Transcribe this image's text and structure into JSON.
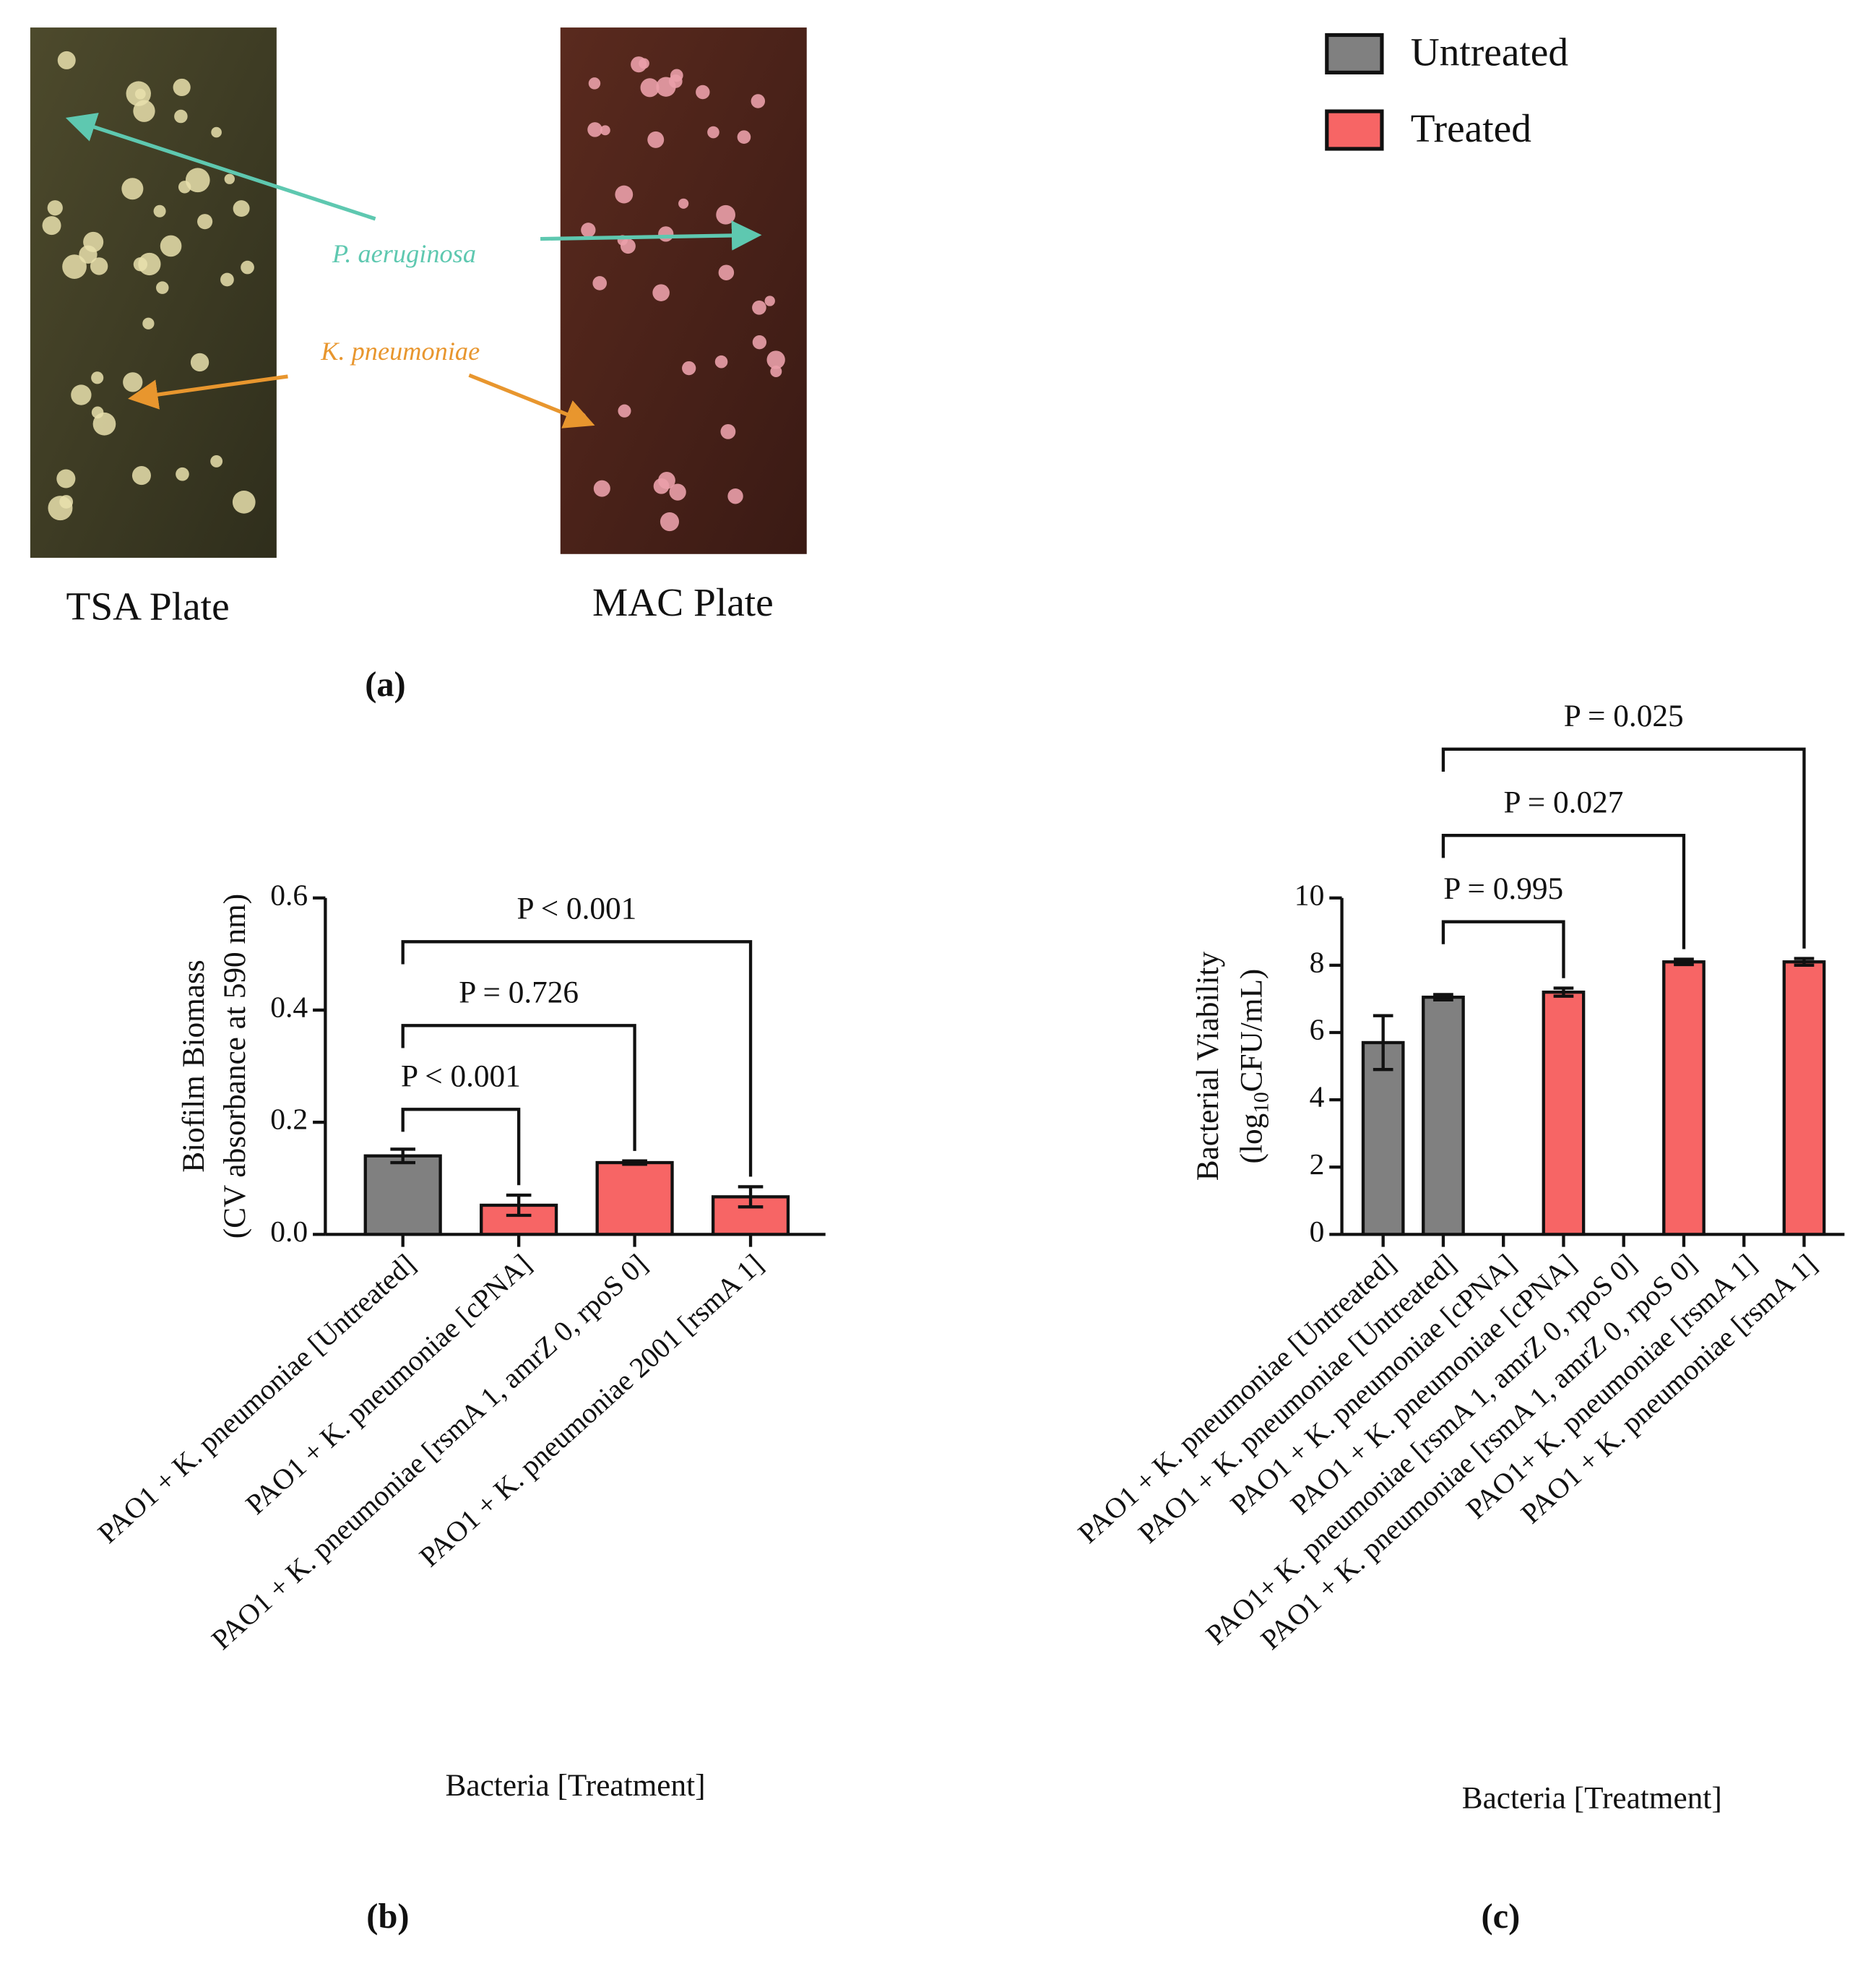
{
  "panel_a": {
    "plates": [
      "TSA Plate",
      "MAC Plate"
    ],
    "species": [
      "P. aeruginosa",
      "K. pneumoniae"
    ],
    "panel_label": "(a)"
  },
  "legend": [
    {
      "name": "Untreated",
      "color": "#808080"
    },
    {
      "name": "Treated",
      "color": "#f76565"
    }
  ],
  "chart_data": [
    {
      "type": "bar",
      "panel_label": "(b)",
      "ylabel": "Biofilm Biomass",
      "ylabel_units": [
        "(CV absorbance at 590 nm)"
      ],
      "xlabel": "Bacteria [Treatment]",
      "categories": [
        "PAO1 + K. pneumoniae [Untreated]",
        "PAO1 + K. pneumoniae [cPNA]",
        "PAO1 + K. pneumoniae [rsmA 1, amrZ 0, rpoS 0]",
        "PAO1 + K. pneumoniae 2001 [rsmA 1]"
      ],
      "values": [
        0.14,
        0.052,
        0.128,
        0.067
      ],
      "errors": [
        0.012,
        0.018,
        0.003,
        0.018
      ],
      "colors": [
        "#808080",
        "#f76565",
        "#f76565",
        "#f76565"
      ],
      "ylim": [
        0,
        0.6
      ],
      "yticks": [
        {
          "value": 0,
          "label": "0.0"
        },
        0.2,
        0.4,
        0.6
      ],
      "comparisons": [
        {
          "label": "P < 0.001",
          "between": [
            0,
            1
          ]
        },
        {
          "label": "P = 0.726",
          "between": [
            0,
            2
          ]
        },
        {
          "label": "P < 0.001",
          "between": [
            0,
            3
          ]
        }
      ]
    },
    {
      "type": "bar",
      "panel_label": "(c)",
      "ylabel": "Bacterial Viability",
      "ylabel_units": [
        "(log",
        "10",
        "CFU/mL)"
      ],
      "xlabel": "Bacteria [Treatment]",
      "categories": [
        "PAO1 + K. pneumoniae [Untreated]",
        "PAO1 + K. pneumoniae [Untreated]",
        "PAO1 + K. pneumoniae [cPNA]",
        "PAO1 + K. pneumoniae [cPNA]",
        "PAO1+ K. pneumoniae [rsmA 1, amrZ 0, rpoS 0]",
        "PAO1 + K. pneumoniae [rsmA 1, amrZ 0, rpoS 0]",
        "PAO1+ K. pneumoniae [rsmA 1]",
        "PAO1 + K. pneumoniae [rsmA 1]"
      ],
      "values": [
        5.7,
        7.05,
        null,
        7.2,
        null,
        8.1,
        null,
        8.1
      ],
      "errors": [
        0.8,
        0.08,
        null,
        0.12,
        null,
        0.08,
        null,
        0.1
      ],
      "colors": [
        "#808080",
        "#808080",
        null,
        "#f76565",
        null,
        "#f76565",
        null,
        "#f76565"
      ],
      "ylim": [
        0,
        10
      ],
      "yticks": [
        0,
        2,
        4,
        6,
        8,
        10
      ],
      "comparisons": [
        {
          "label": "P = 0.995",
          "between": [
            1,
            3
          ]
        },
        {
          "label": "P = 0.027",
          "between": [
            1,
            5
          ]
        },
        {
          "label": "P = 0.025",
          "between": [
            1,
            7
          ]
        }
      ]
    }
  ]
}
